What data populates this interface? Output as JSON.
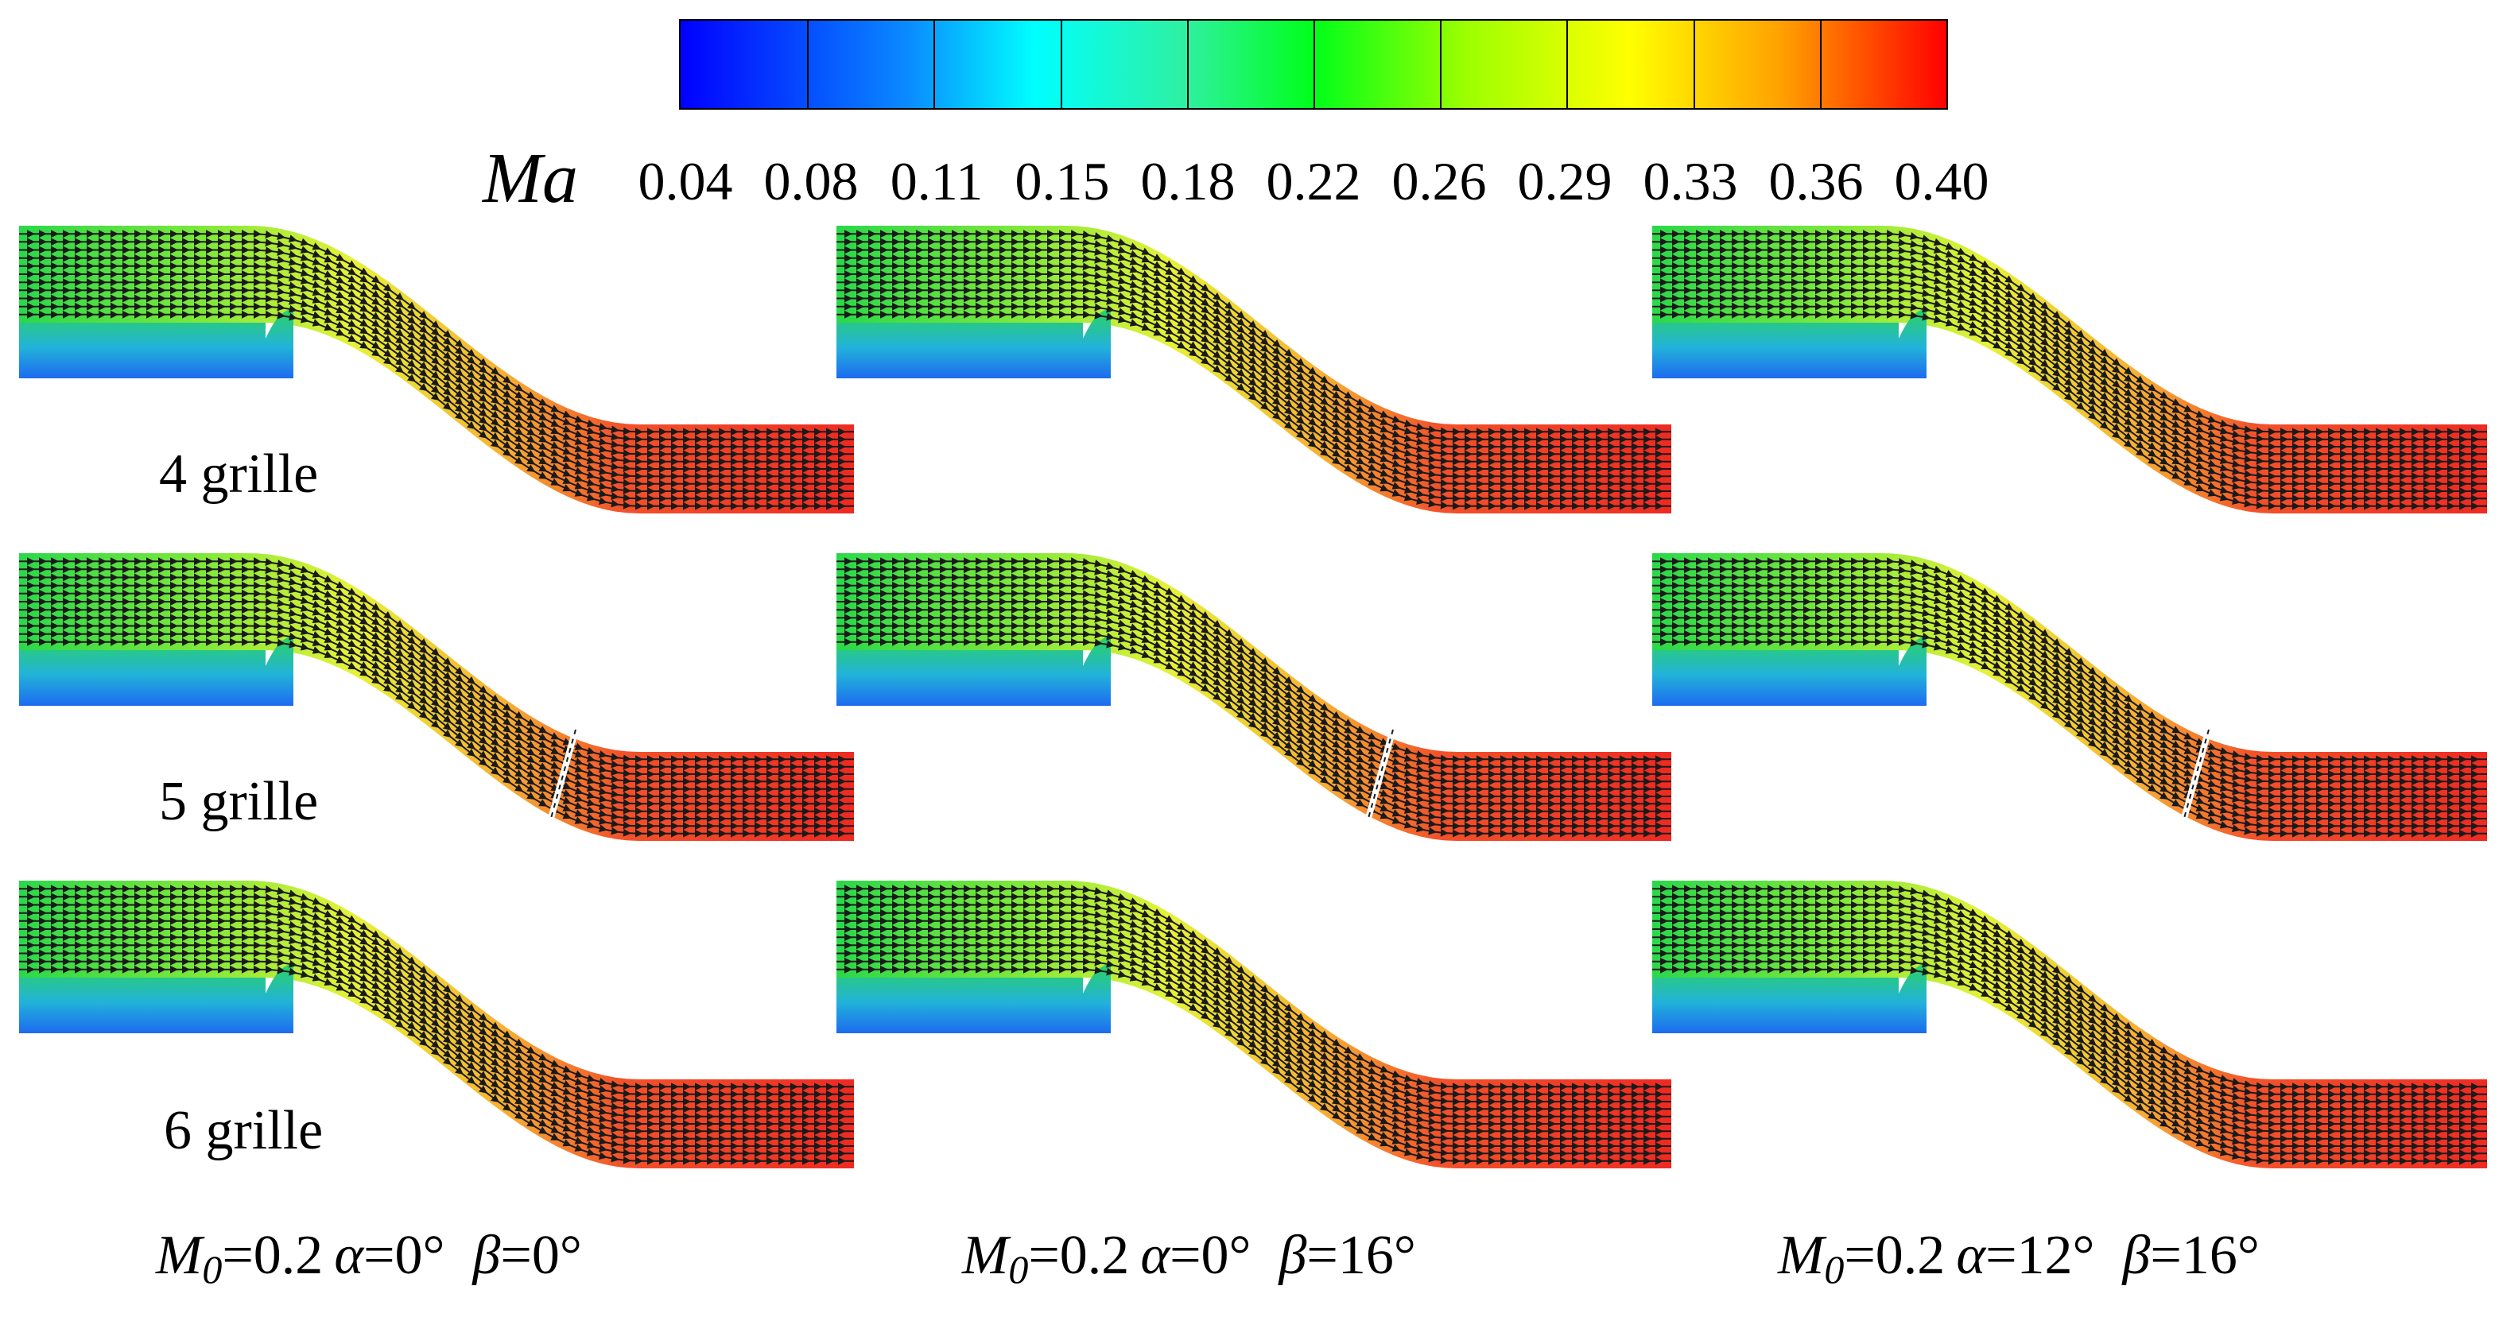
{
  "colorbar": {
    "title": "Ma",
    "ticks": [
      "0.04",
      "0.08",
      "0.11",
      "0.15",
      "0.18",
      "0.22",
      "0.26",
      "0.29",
      "0.33",
      "0.36",
      "0.40"
    ]
  },
  "rows": [
    {
      "label": "4 grille"
    },
    {
      "label": "5 grille"
    },
    {
      "label": "6 grille"
    }
  ],
  "columns": [
    {
      "m_symbol": "M",
      "m_sub": "0",
      "m_value": "=0.2",
      "alpha_symbol": "α",
      "alpha_value": "=0°",
      "beta_symbol": "β",
      "beta_value": "=0°"
    },
    {
      "m_symbol": "M",
      "m_sub": "0",
      "m_value": "=0.2",
      "alpha_symbol": "α",
      "alpha_value": "=0°",
      "beta_symbol": "β",
      "beta_value": "=16°"
    },
    {
      "m_symbol": "M",
      "m_sub": "0",
      "m_value": "=0.2",
      "alpha_symbol": "α",
      "alpha_value": "=12°",
      "beta_symbol": "β",
      "beta_value": "=16°"
    }
  ],
  "colors": {
    "blue": "#0000ff",
    "cyan": "#00ffff",
    "green": "#00ff1a",
    "yellow": "#ffff00",
    "orange": "#ffa000",
    "red": "#ff0000"
  }
}
